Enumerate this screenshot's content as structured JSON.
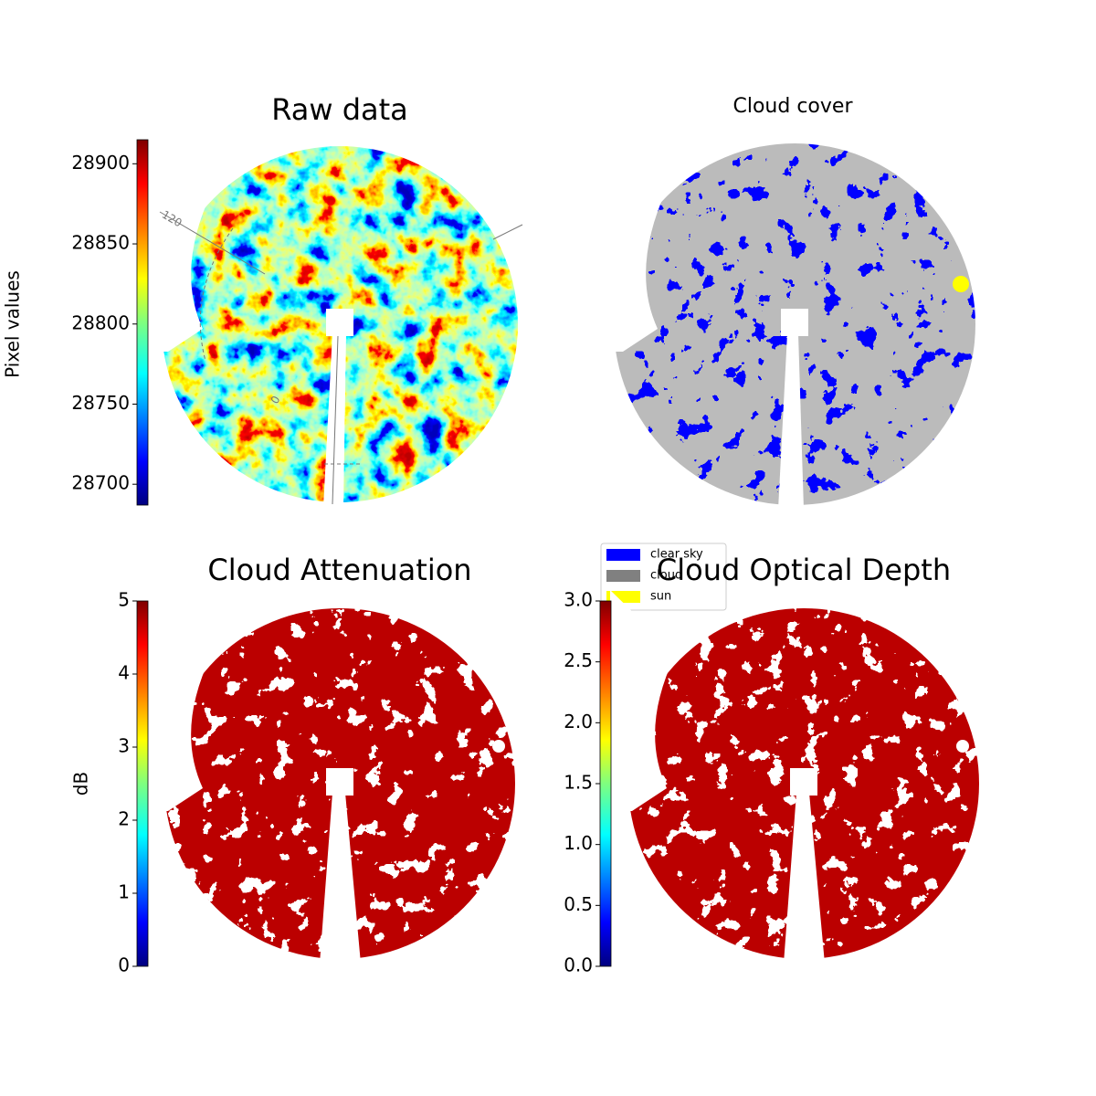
{
  "chart_data": [
    {
      "type": "image",
      "title": "Raw data",
      "colormap": "jet",
      "ylabel": "Pixel values",
      "ylim": [
        28687,
        28915
      ],
      "yticks": [
        28700,
        28750,
        28800,
        28850,
        28900
      ],
      "annotations": [
        "120",
        "0"
      ]
    },
    {
      "type": "image",
      "title": "Cloud cover",
      "series": [
        {
          "name": "clear sky",
          "color": "#0000ff"
        },
        {
          "name": "cloud",
          "color": "#808080"
        },
        {
          "name": "sun",
          "color": "#ffff00"
        }
      ]
    },
    {
      "type": "image",
      "title": "Cloud Attenuation",
      "colormap": "jet",
      "ylabel": "dB",
      "ylim": [
        0,
        5
      ],
      "yticks": [
        0,
        1,
        2,
        3,
        4,
        5
      ]
    },
    {
      "type": "image",
      "title": "Cloud Optical Depth",
      "colormap": "jet",
      "ylim": [
        0,
        3
      ],
      "yticks": [
        {
          "value": 0,
          "label": "0.0"
        },
        0.5,
        {
          "value": 1,
          "label": "1.0"
        },
        1.5,
        {
          "value": 2,
          "label": "2.0"
        },
        2.5,
        {
          "value": 3,
          "label": "3.0"
        }
      ]
    }
  ]
}
